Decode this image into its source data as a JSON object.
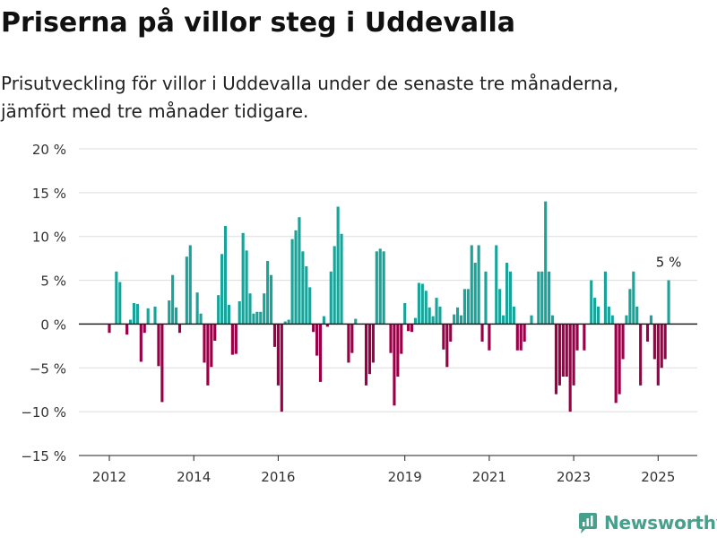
{
  "title": "Priserna på villor steg i Uddevalla",
  "subtitle_lines": [
    "Prisutveckling för villor i Uddevalla under de senaste tre månaderna,",
    "jämfört med tre månader tidigare."
  ],
  "brand": "Newsworthy",
  "colors": {
    "positive": "#1aa399",
    "negative": "#990048",
    "grid": "#dddddd",
    "axis": "#222222",
    "brand": "#46a08c"
  },
  "chart_data": {
    "type": "bar",
    "ylim": [
      -15,
      20
    ],
    "y_ticks": [
      {
        "value": 20,
        "label": "20 %"
      },
      {
        "value": 15,
        "label": "15 %"
      },
      {
        "value": 10,
        "label": "10 %"
      },
      {
        "value": 5,
        "label": "5 %"
      },
      {
        "value": 0,
        "label": "0 %"
      },
      {
        "value": -5,
        "label": "−5 %"
      },
      {
        "value": -10,
        "label": "−10 %"
      },
      {
        "value": -15,
        "label": "−15 %"
      }
    ],
    "x_ticks": [
      {
        "value": 2012,
        "label": "2012"
      },
      {
        "value": 2014,
        "label": "2014"
      },
      {
        "value": 2016,
        "label": "2016"
      },
      {
        "value": 2019,
        "label": "2019"
      },
      {
        "value": 2021,
        "label": "2021"
      },
      {
        "value": 2023,
        "label": "2023"
      },
      {
        "value": 2025,
        "label": "2025"
      }
    ],
    "start_month": "2012-01",
    "values": [
      -1.0,
      null,
      6.0,
      4.8,
      null,
      -1.2,
      0.5,
      2.4,
      2.3,
      -4.3,
      -1.0,
      1.8,
      null,
      2.0,
      -4.8,
      -8.9,
      null,
      2.7,
      5.6,
      1.9,
      -1.0,
      null,
      7.7,
      9.0,
      null,
      3.6,
      1.2,
      -4.4,
      -7.0,
      -4.9,
      -1.9,
      3.3,
      8.0,
      11.2,
      2.2,
      -3.5,
      -3.4,
      2.6,
      10.4,
      8.4,
      3.5,
      1.2,
      1.4,
      1.4,
      3.5,
      7.2,
      5.6,
      -2.6,
      -7.0,
      -10.0,
      0.3,
      0.5,
      9.7,
      10.7,
      12.2,
      8.3,
      6.6,
      4.2,
      -0.9,
      -3.6,
      -6.6,
      0.9,
      -0.3,
      6.0,
      8.9,
      13.4,
      10.3,
      null,
      -4.4,
      -3.3,
      0.6,
      null,
      null,
      -7.0,
      -5.7,
      -4.4,
      8.3,
      8.6,
      8.3,
      null,
      -3.3,
      -9.3,
      -6.0,
      -3.4,
      2.4,
      -0.8,
      -0.9,
      0.7,
      4.7,
      4.6,
      3.8,
      1.9,
      0.9,
      3.0,
      2.0,
      -2.9,
      -4.9,
      -2.0,
      1.1,
      1.9,
      1.0,
      4.0,
      4.0,
      9.0,
      7.0,
      9.0,
      -2.0,
      6.0,
      -3.0,
      null,
      9.0,
      4.0,
      1.0,
      7.0,
      6.0,
      2.0,
      -3.0,
      -3.0,
      -2.0,
      null,
      1.0,
      null,
      6.0,
      6.0,
      14.0,
      6.0,
      1.0,
      -8.0,
      -7.0,
      -6.0,
      -6.0,
      -10.0,
      -7.0,
      -3.0,
      null,
      -3.0,
      null,
      5.0,
      3.0,
      2.0,
      null,
      6.0,
      2.0,
      1.0,
      -9.0,
      -8.0,
      -4.0,
      1.0,
      4.0,
      6.0,
      2.0,
      -7.0,
      null,
      -2.0,
      1.0,
      -4.0,
      -7.0,
      -5.0,
      -4.0,
      5.0
    ],
    "annotation": {
      "month": "2025-04",
      "label": "5 %"
    }
  }
}
